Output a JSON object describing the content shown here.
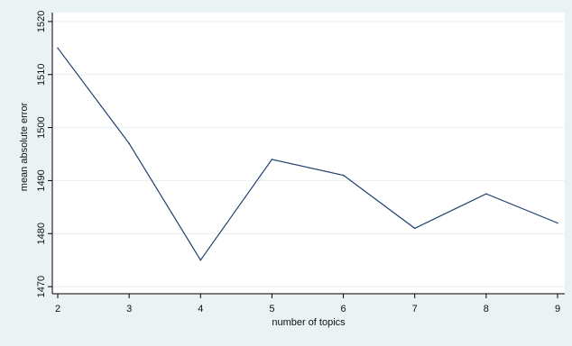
{
  "chart_data": {
    "type": "line",
    "title": "",
    "xlabel": "number of topics",
    "ylabel": "mean absolute error",
    "x": [
      2,
      3,
      4,
      5,
      6,
      7,
      8,
      9
    ],
    "series": [
      {
        "values": [
          1515,
          1497,
          1475,
          1494,
          1491,
          1481,
          1487.5,
          1482
        ]
      }
    ],
    "xticks": [
      "2",
      "3",
      "4",
      "5",
      "6",
      "7",
      "8",
      "9"
    ],
    "yticks": [
      "1470",
      "1480",
      "1490",
      "1500",
      "1510",
      "1520"
    ],
    "xlim": [
      2,
      9
    ],
    "ylim": [
      1469,
      1521
    ],
    "grid": "horizontal",
    "legend": "none",
    "colors": {
      "background": "#eaf2f3",
      "plot_area": "#ffffff",
      "line": "#1f3f6e",
      "gridline": "#e8eef0",
      "axis": "#000000"
    }
  }
}
